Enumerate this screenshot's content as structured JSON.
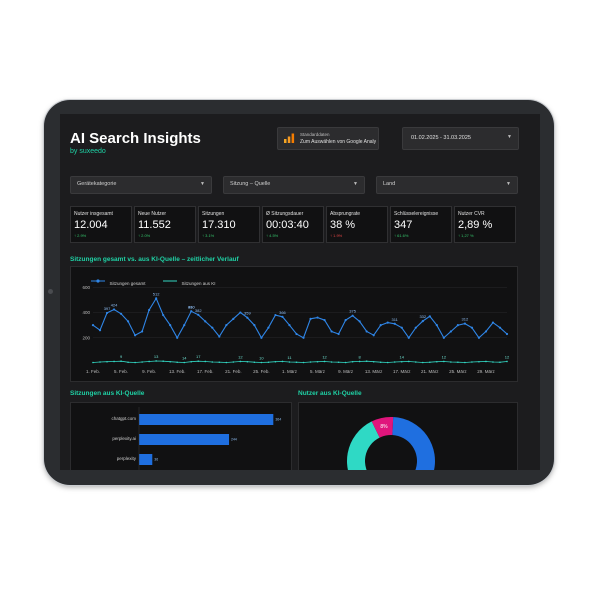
{
  "header": {
    "title": "AI Search Insights",
    "subtitle": "by suxeedo"
  },
  "data_source": {
    "label": "Standarddaten",
    "value": "Zum Auswählen von Google Analy",
    "icon": "analytics-bars-icon"
  },
  "date_range": {
    "value": "01.02.2025 - 31.03.2025"
  },
  "filters": [
    {
      "label": "Gerätekategorie"
    },
    {
      "label": "Sitzung – Quelle"
    },
    {
      "label": "Land"
    }
  ],
  "kpis": [
    {
      "label": "Nutzer insgesamt",
      "value": "12.004",
      "delta": "↑ 2.9%",
      "trend": "up"
    },
    {
      "label": "Neue Nutzer",
      "value": "11.552",
      "delta": "↑ 2.0%",
      "trend": "up"
    },
    {
      "label": "Sitzungen",
      "value": "17.310",
      "delta": "↑ 3.1%",
      "trend": "up"
    },
    {
      "label": "Ø Sitzungsdauer",
      "value": "00:03:40",
      "delta": "↑ 4.5%",
      "trend": "up"
    },
    {
      "label": "Absprungrate",
      "value": "38 %",
      "delta": "↑ 1.9%",
      "trend": "down"
    },
    {
      "label": "Schlüsselereignisse",
      "value": "347",
      "delta": "↑ 61.6%",
      "trend": "up"
    },
    {
      "label": "Nutzer CVR",
      "value": "2,89 %",
      "delta": "↑ 1,27 %",
      "trend": "up"
    }
  ],
  "line_section": {
    "title": "Sitzungen gesamt vs. aus KI-Quelle – zeitlicher Verlauf"
  },
  "bar_section": {
    "title": "Sitzungen aus KI-Quelle"
  },
  "donut_section": {
    "title": "Nutzer aus KI-Quelle"
  },
  "colors": {
    "accent": "#1fd1a5",
    "series_total": "#2f86e8",
    "series_ai": "#32d6c2",
    "bar": "#1f6fe0",
    "donut_blue": "#1f6fe0",
    "donut_teal": "#2fd9c5",
    "donut_pink": "#e0157c"
  },
  "chart_data": [
    {
      "type": "line",
      "legend_position": "top-left",
      "series": [
        {
          "name": "Sitzungen gesamt",
          "values": [
            300,
            260,
            397,
            424,
            390,
            330,
            220,
            250,
            420,
            512,
            380,
            300,
            200,
            300,
            410,
            382,
            330,
            280,
            210,
            300,
            350,
            400,
            359,
            300,
            200,
            280,
            380,
            366,
            300,
            230,
            200,
            350,
            360,
            340,
            250,
            230,
            340,
            375,
            330,
            250,
            220,
            300,
            320,
            311,
            280,
            200,
            280,
            332,
            370,
            300,
            200,
            250,
            300,
            312,
            280,
            200,
            250,
            320,
            280,
            230
          ]
        },
        {
          "name": "Sitzungen aus KI",
          "values": [
            4,
            8,
            10,
            12,
            14,
            6,
            4,
            8,
            12,
            16,
            14,
            10,
            6,
            4,
            10,
            14,
            12,
            8,
            6,
            4,
            8,
            12,
            10,
            6,
            4,
            6,
            10,
            12,
            8,
            6,
            4,
            8,
            10,
            12,
            8,
            6,
            4,
            10,
            12,
            14,
            10,
            6,
            4,
            8,
            10,
            12,
            8,
            4,
            6,
            10,
            12,
            8,
            6,
            4,
            8,
            10,
            12,
            8,
            6,
            12
          ]
        }
      ],
      "x_ticks": [
        "1. Feb.",
        "5. Feb.",
        "9. Feb.",
        "13. Feb.",
        "17. Feb.",
        "21. Feb.",
        "25. Feb.",
        "1. März",
        "5. März",
        "9. März",
        "13. März",
        "17. März",
        "21. März",
        "25. März",
        "29. März"
      ],
      "y_ticks": [
        200,
        400,
        600
      ],
      "ylim": [
        0,
        650
      ],
      "data_labels": {
        "total": [
          397,
          424,
          360,
          512,
          410,
          382,
          359,
          366,
          375,
          311,
          332,
          312
        ],
        "ai": [
          9,
          13,
          14,
          17,
          12,
          10,
          11,
          12,
          8,
          14,
          12,
          12
        ]
      }
    },
    {
      "type": "bar",
      "orientation": "horizontal",
      "categories": [
        "chatgpt.com",
        "perplexity.ai",
        "perplexity"
      ],
      "values": [
        364,
        244,
        36
      ],
      "value_labels": [
        "364",
        "244",
        "36"
      ]
    },
    {
      "type": "pie",
      "style": "donut",
      "slices": [
        {
          "label": "",
          "value": 58,
          "color": "#1f6fe0"
        },
        {
          "label": "",
          "value": 30,
          "color": "#2fd9c5"
        },
        {
          "label": "8%",
          "value": 8,
          "color": "#e0157c"
        },
        {
          "label": "",
          "value": 4,
          "color": "#111112"
        }
      ],
      "visible_label": "8%"
    }
  ]
}
